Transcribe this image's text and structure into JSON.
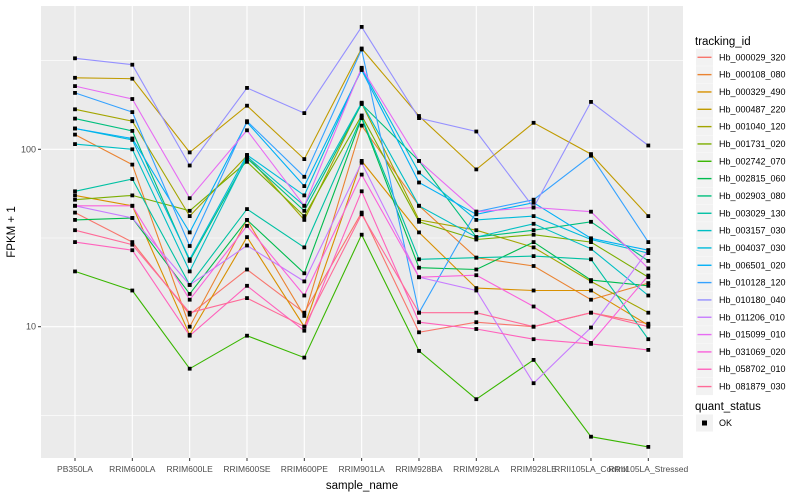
{
  "chart_data": {
    "type": "line",
    "title": "",
    "xlabel": "sample_name",
    "ylabel": "FPKM + 1",
    "y_scale": "log10",
    "ylim": [
      1.8,
      640
    ],
    "grid": true,
    "legend_position": "right",
    "legend_title": "tracking_id",
    "y_ticks": [
      10,
      100
    ],
    "y_tick_labels": [
      "10",
      "100"
    ],
    "y_minor_breaks": [
      3.162,
      31.62,
      316.2
    ],
    "x_categories": [
      "PB350LA",
      "RRIM600LA",
      "RRIM600LE",
      "RRIM600SE",
      "RRIM600PE",
      "RRIM901LA",
      "RRIM928BA",
      "RRIM928LA",
      "RRIM928LE",
      "RRII105LA_Control",
      "RRII105LA_Stressed"
    ],
    "series": [
      {
        "name": "Hb_000029_320",
        "color": "#F8766D",
        "values": [
          44,
          30,
          11.7,
          21,
          12,
          44,
          9.3,
          10.6,
          10,
          12,
          10.4
        ]
      },
      {
        "name": "Hb_000108_080",
        "color": "#EA8331",
        "values": [
          121,
          82,
          10,
          40,
          11.5,
          136,
          48,
          24.5,
          22,
          14.2,
          17.6
        ]
      },
      {
        "name": "Hb_000329_490",
        "color": "#D89000",
        "values": [
          55,
          48,
          9,
          32,
          10,
          86,
          34,
          16.5,
          16,
          16,
          10.2
        ]
      },
      {
        "name": "Hb_000487_220",
        "color": "#C09B00",
        "values": [
          253,
          250,
          96,
          176,
          88,
          370,
          154,
          77,
          141,
          94,
          42
        ]
      },
      {
        "name": "Hb_001040_120",
        "color": "#A3A500",
        "values": [
          168,
          144,
          42,
          92,
          40,
          182,
          40,
          35,
          28,
          18,
          12
        ]
      },
      {
        "name": "Hb_001731_020",
        "color": "#7CAE00",
        "values": [
          52,
          55,
          45,
          85,
          42,
          155,
          39,
          31,
          33,
          30,
          19
        ]
      },
      {
        "name": "Hb_002742_070",
        "color": "#39B600",
        "values": [
          20.5,
          16,
          5.8,
          8.9,
          6.7,
          33,
          7.3,
          3.9,
          6.5,
          2.4,
          2.1
        ]
      },
      {
        "name": "Hb_002815_060",
        "color": "#00BB4E",
        "values": [
          40,
          41,
          15.3,
          40,
          20,
          150,
          21.5,
          21,
          30,
          18.3,
          17
        ]
      },
      {
        "name": "Hb_002903_080",
        "color": "#00BF7D",
        "values": [
          149,
          127,
          23.5,
          89,
          45,
          180,
          86,
          32,
          35,
          39,
          23.5
        ]
      },
      {
        "name": "Hb_003029_130",
        "color": "#00C1A3",
        "values": [
          58,
          68,
          17.2,
          46,
          28,
          152,
          24,
          24.5,
          25,
          24,
          8.5
        ]
      },
      {
        "name": "Hb_003157_030",
        "color": "#00BFC4",
        "values": [
          107,
          100,
          20.5,
          91,
          48,
          183,
          48,
          32,
          38,
          27.5,
          15
        ]
      },
      {
        "name": "Hb_004037_030",
        "color": "#00BBDB",
        "values": [
          131,
          113,
          24,
          93,
          55,
          285,
          74,
          40,
          42,
          31,
          26
        ]
      },
      {
        "name": "Hb_006501_020",
        "color": "#00B0F6",
        "values": [
          131,
          115,
          34,
          142,
          62,
          280,
          65,
          43,
          50,
          31.5,
          27
        ]
      },
      {
        "name": "Hb_010128_120",
        "color": "#35A2FF",
        "values": [
          208,
          162,
          28.5,
          144,
          70,
          365,
          12,
          44.5,
          52,
          92,
          30
        ]
      },
      {
        "name": "Hb_010180_040",
        "color": "#9590FF",
        "values": [
          326,
          300,
          81,
          222,
          160,
          490,
          150,
          126,
          47,
          185,
          105
        ]
      },
      {
        "name": "Hb_011206_010",
        "color": "#C77CFF",
        "values": [
          48,
          41,
          17.2,
          28.7,
          18,
          84,
          19,
          16,
          4.8,
          9.9,
          27
        ]
      },
      {
        "name": "Hb_015099_010",
        "color": "#E76BF3",
        "values": [
          227,
          192,
          53,
          128,
          48,
          288,
          86,
          44.5,
          47,
          44.5,
          21.3
        ]
      },
      {
        "name": "Hb_031069_020",
        "color": "#FA62DB",
        "values": [
          48,
          48,
          14.2,
          37,
          15,
          72,
          19,
          19.5,
          13,
          8.1,
          19.4
        ]
      },
      {
        "name": "Hb_058702_010",
        "color": "#FF62BC",
        "values": [
          30,
          27,
          8.9,
          17,
          9.5,
          58,
          10.6,
          9.7,
          8.5,
          8,
          7.4
        ]
      },
      {
        "name": "Hb_081879_030",
        "color": "#FF6A98",
        "values": [
          35,
          29,
          12,
          14.5,
          10,
          43,
          12,
          12,
          10,
          12,
          10
        ]
      }
    ],
    "quant_status": {
      "title": "quant_status",
      "entries": [
        {
          "label": "OK",
          "marker": "black-square"
        }
      ]
    },
    "colors": {
      "panel_bg": "#EBEBEB",
      "grid": "#FFFFFF",
      "point": "#000000",
      "tick_text": "#4D4D4D",
      "legend_key_bg": "#F2F2F2"
    }
  }
}
